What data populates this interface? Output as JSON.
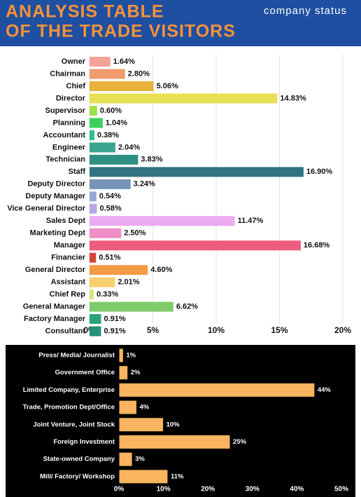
{
  "header": {
    "title": [
      "ANALYSIS TABLE",
      "OF THE TRADE VISITORS"
    ],
    "subtitle": "company status"
  },
  "chart_data": [
    {
      "type": "hbar",
      "categories": [
        "Owner",
        "Chairman",
        "Chief",
        "Director",
        "Supervisor",
        "Planning",
        "Accountant",
        "Engineer",
        "Technician",
        "Staff",
        "Deputy Director",
        "Deputy Manager",
        "Vice General Director",
        "Sales Dept",
        "Marketing Dept",
        "Manager",
        "Financier",
        "General Director",
        "Assistant",
        "Chief Rep",
        "General Manager",
        "Factory Manager",
        "Consultant"
      ],
      "values": [
        1.64,
        2.8,
        5.06,
        14.83,
        0.6,
        1.04,
        0.38,
        2.04,
        3.83,
        16.9,
        3.24,
        0.54,
        0.58,
        11.47,
        2.5,
        16.68,
        0.51,
        4.6,
        2.01,
        0.33,
        6.62,
        0.91,
        0.91
      ],
      "value_labels": [
        "1.64%",
        "2.80%",
        "5.06%",
        "14.83%",
        "0.60%",
        "1.04%",
        "0.38%",
        "2.04%",
        "3.83%",
        "16.90%",
        "3.24%",
        "0.54%",
        "0.58%",
        "11.47%",
        "2.50%",
        "16.68%",
        "0.51%",
        "4.60%",
        "2.01%",
        "0.33%",
        "6.62%",
        "0.91%",
        "0.91%"
      ],
      "colors": [
        "#f4a29a",
        "#f09b6b",
        "#e8b23c",
        "#e6e052",
        "#9ee04c",
        "#3dcf5a",
        "#2cbf8a",
        "#3aa58e",
        "#2e8f83",
        "#2f7480",
        "#7594b8",
        "#98a8d6",
        "#b9a8e8",
        "#ecaaf0",
        "#f08ec8",
        "#ec5d7e",
        "#d2443c",
        "#f49a45",
        "#f7cf6e",
        "#d6e67a",
        "#7fcc6a",
        "#2aa37a",
        "#23907c"
      ],
      "xlim": [
        0,
        20
      ],
      "xticks": [
        {
          "value": 0,
          "label": "0%"
        },
        {
          "value": 5,
          "label": "5%"
        },
        {
          "value": 10,
          "label": "10%"
        },
        {
          "value": 15,
          "label": "15%"
        },
        {
          "value": 20,
          "label": "20%"
        }
      ],
      "grid": true
    },
    {
      "type": "hbar",
      "categories": [
        "Press/ Media/ Journalist",
        "Government Office",
        "Limited Company, Enterprise",
        "Trade, Promotion Dept/Office",
        "Joint Venture, Joint Stock",
        "Foreign Investment",
        "State-owned Company",
        "Mill/ Factory/ Workshop"
      ],
      "values": [
        1,
        2,
        44,
        4,
        10,
        25,
        3,
        11
      ],
      "value_labels": [
        "1%",
        "2%",
        "44%",
        "4%",
        "10%",
        "25%",
        "3%",
        "11%"
      ],
      "color": "#f8b45f",
      "xlim": [
        0,
        50
      ],
      "xticks": [
        {
          "value": 0,
          "label": "0%"
        },
        {
          "value": 10,
          "label": "10%"
        },
        {
          "value": 20,
          "label": "20%"
        },
        {
          "value": 30,
          "label": "30%"
        },
        {
          "value": 40,
          "label": "40%"
        },
        {
          "value": 50,
          "label": "50%"
        }
      ],
      "grid": false
    }
  ]
}
